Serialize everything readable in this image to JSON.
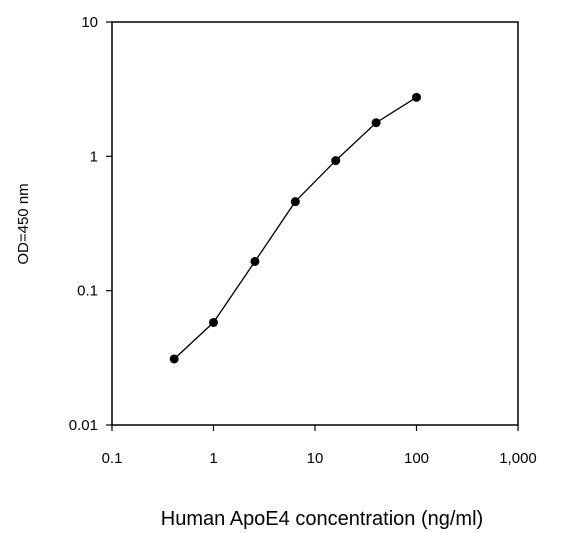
{
  "chart_data": {
    "type": "line",
    "title": "",
    "xlabel": "Human ApoE4 concentration (ng/ml)",
    "ylabel": "OD=450 nm",
    "xscale": "log",
    "yscale": "log",
    "xlim": [
      0.1,
      1000
    ],
    "ylim": [
      0.01,
      10
    ],
    "x_ticks": [
      0.1,
      1,
      10,
      100,
      1000
    ],
    "x_tick_labels": [
      "0.1",
      "1",
      "10",
      "100",
      "1,000"
    ],
    "y_ticks": [
      0.01,
      0.1,
      1,
      10
    ],
    "y_tick_labels": [
      "0.01",
      "0.1",
      "1",
      "10"
    ],
    "grid": false,
    "legend": "none",
    "series": [
      {
        "x": [
          0.41,
          1.0,
          2.56,
          6.4,
          16.0,
          40.0,
          100.0
        ],
        "y": [
          0.031,
          0.058,
          0.165,
          0.46,
          0.93,
          1.78,
          2.75
        ],
        "color": "#000000",
        "marker": "circle"
      }
    ]
  }
}
